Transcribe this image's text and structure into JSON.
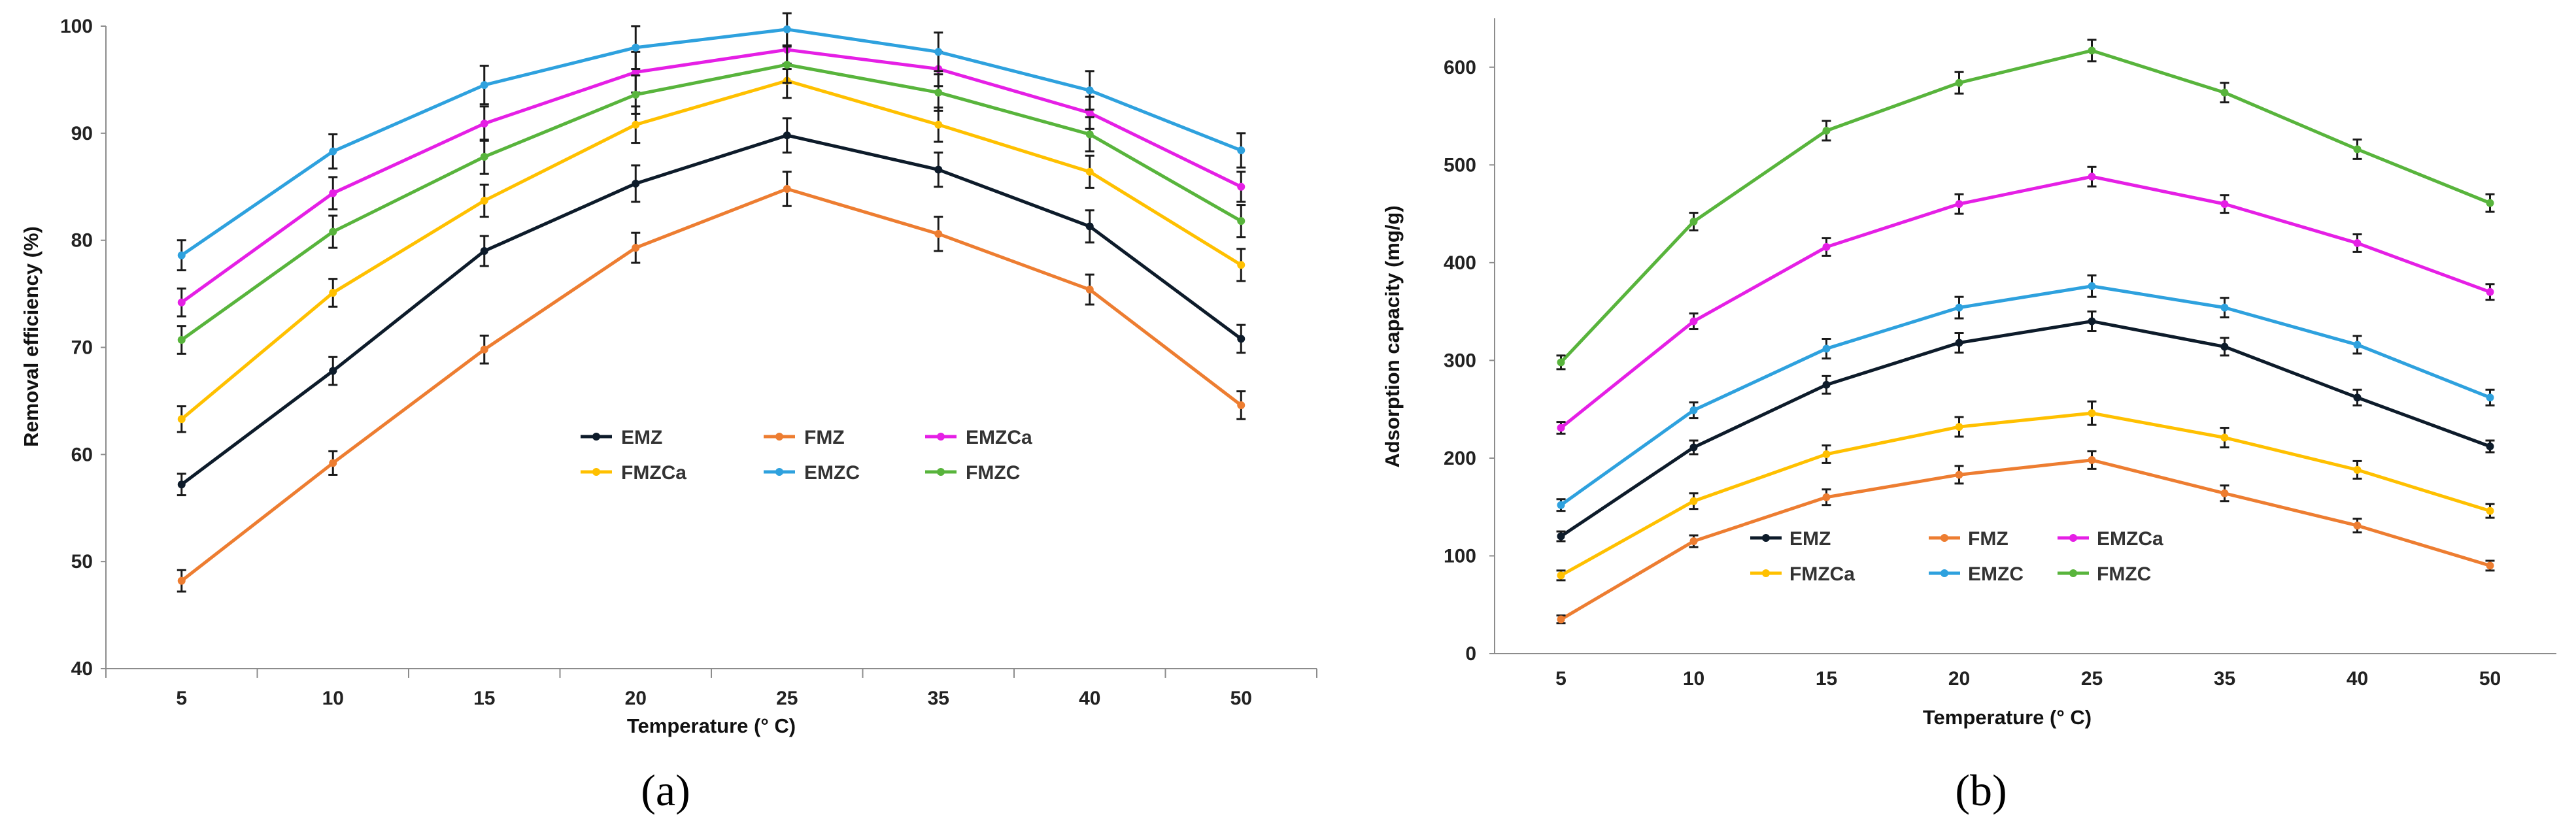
{
  "chart_data": [
    {
      "type": "line",
      "panel_label": "(a)",
      "title": "",
      "xlabel": "Temperature (° C)",
      "ylabel": "Removal efficiency (%)",
      "categories": [
        "5",
        "10",
        "15",
        "20",
        "25",
        "35",
        "40",
        "50"
      ],
      "ylim": [
        40,
        100
      ],
      "yticks": [
        40,
        50,
        60,
        70,
        80,
        90,
        100
      ],
      "grid": false,
      "legend_position": "center",
      "series": [
        {
          "name": "EMZ",
          "color": "#0d1b2a",
          "values": [
            57.2,
            67.8,
            79.0,
            85.3,
            89.8,
            86.6,
            81.3,
            70.8
          ],
          "errors": [
            1.0,
            1.3,
            1.4,
            1.7,
            1.6,
            1.6,
            1.5,
            1.3
          ]
        },
        {
          "name": "FMZ",
          "color": "#ed7d31",
          "values": [
            48.2,
            59.2,
            69.8,
            79.3,
            84.8,
            80.6,
            75.4,
            64.6
          ],
          "errors": [
            1.0,
            1.1,
            1.3,
            1.4,
            1.6,
            1.6,
            1.4,
            1.3
          ]
        },
        {
          "name": "EMZCa",
          "color": "#e51fe5",
          "values": [
            74.2,
            84.4,
            90.9,
            95.7,
            97.8,
            96.0,
            91.9,
            85.0
          ],
          "errors": [
            1.3,
            1.5,
            1.6,
            1.9,
            1.8,
            1.6,
            1.5,
            1.4
          ]
        },
        {
          "name": "FMZCa",
          "color": "#ffc000",
          "values": [
            63.3,
            75.1,
            83.7,
            90.8,
            94.9,
            90.8,
            86.4,
            77.7
          ],
          "errors": [
            1.2,
            1.3,
            1.5,
            1.7,
            1.6,
            1.6,
            1.5,
            1.5
          ]
        },
        {
          "name": "EMZC",
          "color": "#2ea1de",
          "values": [
            78.6,
            88.3,
            94.5,
            98.0,
            99.7,
            97.6,
            94.0,
            88.4
          ],
          "errors": [
            1.4,
            1.6,
            1.8,
            2.0,
            1.5,
            1.8,
            1.8,
            1.6
          ]
        },
        {
          "name": "FMZC",
          "color": "#58b43c",
          "values": [
            70.7,
            80.8,
            87.8,
            93.6,
            96.4,
            93.8,
            89.9,
            81.8
          ],
          "errors": [
            1.3,
            1.5,
            1.6,
            1.8,
            1.7,
            1.7,
            1.6,
            1.5
          ]
        }
      ]
    },
    {
      "type": "line",
      "panel_label": "(b)",
      "title": "",
      "xlabel": "Temperature (° C)",
      "ylabel": "Adsorption capacity (mg/g)",
      "categories": [
        "5",
        "10",
        "15",
        "20",
        "25",
        "35",
        "40",
        "50"
      ],
      "ylim": [
        0,
        650
      ],
      "yticks": [
        0,
        100,
        200,
        300,
        400,
        500,
        600
      ],
      "grid": false,
      "legend_position": "lower-center",
      "series": [
        {
          "name": "EMZ",
          "color": "#0d1b2a",
          "values": [
            120,
            211,
            275,
            318,
            340,
            314,
            262,
            212
          ],
          "errors": [
            5,
            7,
            9,
            10,
            10,
            9,
            8,
            6
          ]
        },
        {
          "name": "FMZ",
          "color": "#ed7d31",
          "values": [
            35,
            115,
            160,
            183,
            198,
            164,
            131,
            90
          ],
          "errors": [
            4,
            6,
            8,
            9,
            9,
            8,
            7,
            5
          ]
        },
        {
          "name": "EMZCa",
          "color": "#e51fe5",
          "values": [
            231,
            340,
            416,
            460,
            488,
            460,
            420,
            370
          ],
          "errors": [
            6,
            8,
            9,
            10,
            10,
            9,
            9,
            8
          ]
        },
        {
          "name": "FMZCa",
          "color": "#ffc000",
          "values": [
            80,
            156,
            204,
            232,
            246,
            221,
            188,
            146
          ],
          "errors": [
            5,
            8,
            9,
            10,
            12,
            10,
            9,
            7
          ]
        },
        {
          "name": "EMZC",
          "color": "#2ea1de",
          "values": [
            152,
            249,
            312,
            354,
            376,
            354,
            316,
            262
          ],
          "errors": [
            6,
            8,
            10,
            11,
            11,
            10,
            9,
            8
          ]
        },
        {
          "name": "FMZC",
          "color": "#58b43c",
          "values": [
            298,
            442,
            535,
            584,
            617,
            574,
            516,
            461
          ],
          "errors": [
            7,
            9,
            10,
            11,
            11,
            10,
            10,
            9
          ]
        }
      ]
    }
  ]
}
